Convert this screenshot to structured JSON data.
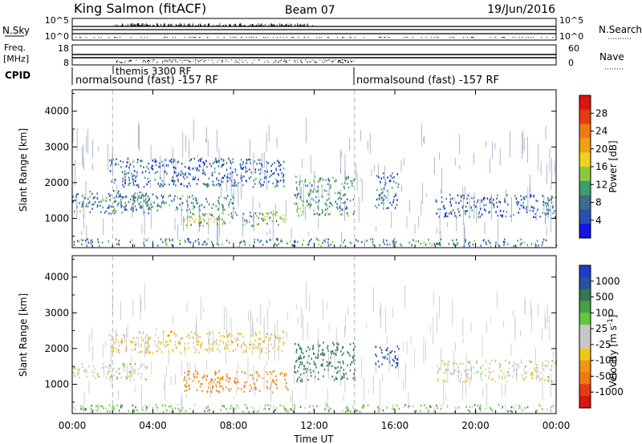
{
  "header": {
    "station": "King Salmon (fitACF)",
    "beam": "Beam 07",
    "date": "19/Jun/2016"
  },
  "status_panels": {
    "nsky_label": "N.Sky",
    "nsky_ticks": [
      "10^5",
      "10^0"
    ],
    "nsearch_label": "N.Search",
    "nsearch_ticks": [
      "10^5",
      "10^0"
    ],
    "freq_label": "Freq.",
    "freq_unit": "[MHz]",
    "freq_ticks": [
      "18",
      "8"
    ],
    "nave_label": "Nave",
    "nave_ticks": [
      "60",
      "0"
    ],
    "cpid_label": "CPID",
    "cpid_segments": [
      {
        "start_hour": 0,
        "label": "normalsound (fast) -157 RF"
      },
      {
        "start_hour": 14,
        "label": "normalsound (fast) -157 RF"
      }
    ],
    "special_label": "themis 3300 RF",
    "special_start_hour": 2
  },
  "chart_data": [
    {
      "type": "heatmap",
      "name": "Power",
      "ylabel": "Slant Range [km]",
      "xlabel": "",
      "xlim": [
        0,
        24
      ],
      "ylim": [
        180,
        4600
      ],
      "yticks": [
        1000,
        2000,
        3000,
        4000
      ],
      "colorbar": {
        "label": "Power [dB]",
        "ticks": [
          "28",
          "24",
          "20",
          "16",
          "12",
          "8",
          "4"
        ],
        "range": [
          0,
          30
        ],
        "colors": [
          "#1414e6",
          "#2850b4",
          "#3c6e8c",
          "#3ca06e",
          "#8cc83c",
          "#f0d21e",
          "#f0a014",
          "#f07814",
          "#e63c14",
          "#dc1414"
        ]
      },
      "echo_regions": [
        {
          "t0": 0,
          "t1": 3.8,
          "r0": 1150,
          "r1": 1800,
          "level": 8
        },
        {
          "t0": 1.8,
          "t1": 10.5,
          "r0": 1900,
          "r1": 2700,
          "level": 6
        },
        {
          "t0": 5.5,
          "t1": 10.5,
          "r0": 800,
          "r1": 1200,
          "level": 12
        },
        {
          "t0": 2.0,
          "t1": 8.0,
          "r0": 1250,
          "r1": 1700,
          "level": 8
        },
        {
          "t0": 11.0,
          "t1": 14.0,
          "r0": 1100,
          "r1": 2200,
          "level": 10
        },
        {
          "t0": 15.0,
          "t1": 16.2,
          "r0": 1300,
          "r1": 2300,
          "level": 6
        },
        {
          "t0": 18.0,
          "t1": 24.0,
          "r0": 1050,
          "r1": 1700,
          "level": 6
        },
        {
          "t0": 0,
          "t1": 24,
          "r0": 250,
          "r1": 450,
          "level": 8
        }
      ]
    },
    {
      "type": "heatmap",
      "name": "Velocity",
      "ylabel": "Slant Range [km]",
      "xlabel": "Time UT",
      "xlim": [
        0,
        24
      ],
      "ylim": [
        180,
        4600
      ],
      "xticks": [
        "00:00",
        "04:00",
        "08:00",
        "12:00",
        "16:00",
        "20:00",
        "00:00"
      ],
      "yticks": [
        1000,
        2000,
        3000,
        4000
      ],
      "colorbar": {
        "label": "Velocity [m s^-1]",
        "ticks": [
          "1000",
          "500",
          "100",
          "25",
          "-25",
          "-100",
          "-500",
          "-1000"
        ],
        "colors": [
          "#1e3cc8",
          "#2850a0",
          "#327850",
          "#46a046",
          "#64c83c",
          "#c8c8c8",
          "#c8c8c8",
          "#f0c814",
          "#f09614",
          "#f07814",
          "#e63c14",
          "#dc1414"
        ]
      },
      "echo_regions": [
        {
          "t0": 0,
          "t1": 3.8,
          "r0": 1150,
          "r1": 1600,
          "velocity": 0
        },
        {
          "t0": 1.8,
          "t1": 10.5,
          "r0": 1900,
          "r1": 2500,
          "velocity": -60
        },
        {
          "t0": 5.5,
          "t1": 10.8,
          "r0": 800,
          "r1": 1400,
          "velocity": -300
        },
        {
          "t0": 11.0,
          "t1": 14.0,
          "r0": 1100,
          "r1": 2200,
          "velocity": 200
        },
        {
          "t0": 15.0,
          "t1": 16.2,
          "r0": 1500,
          "r1": 2100,
          "velocity": 600
        },
        {
          "t0": 18.0,
          "t1": 24.0,
          "r0": 1100,
          "r1": 1700,
          "velocity": 0
        },
        {
          "t0": 0,
          "t1": 24,
          "r0": 250,
          "r1": 450,
          "velocity": 60
        }
      ]
    }
  ]
}
